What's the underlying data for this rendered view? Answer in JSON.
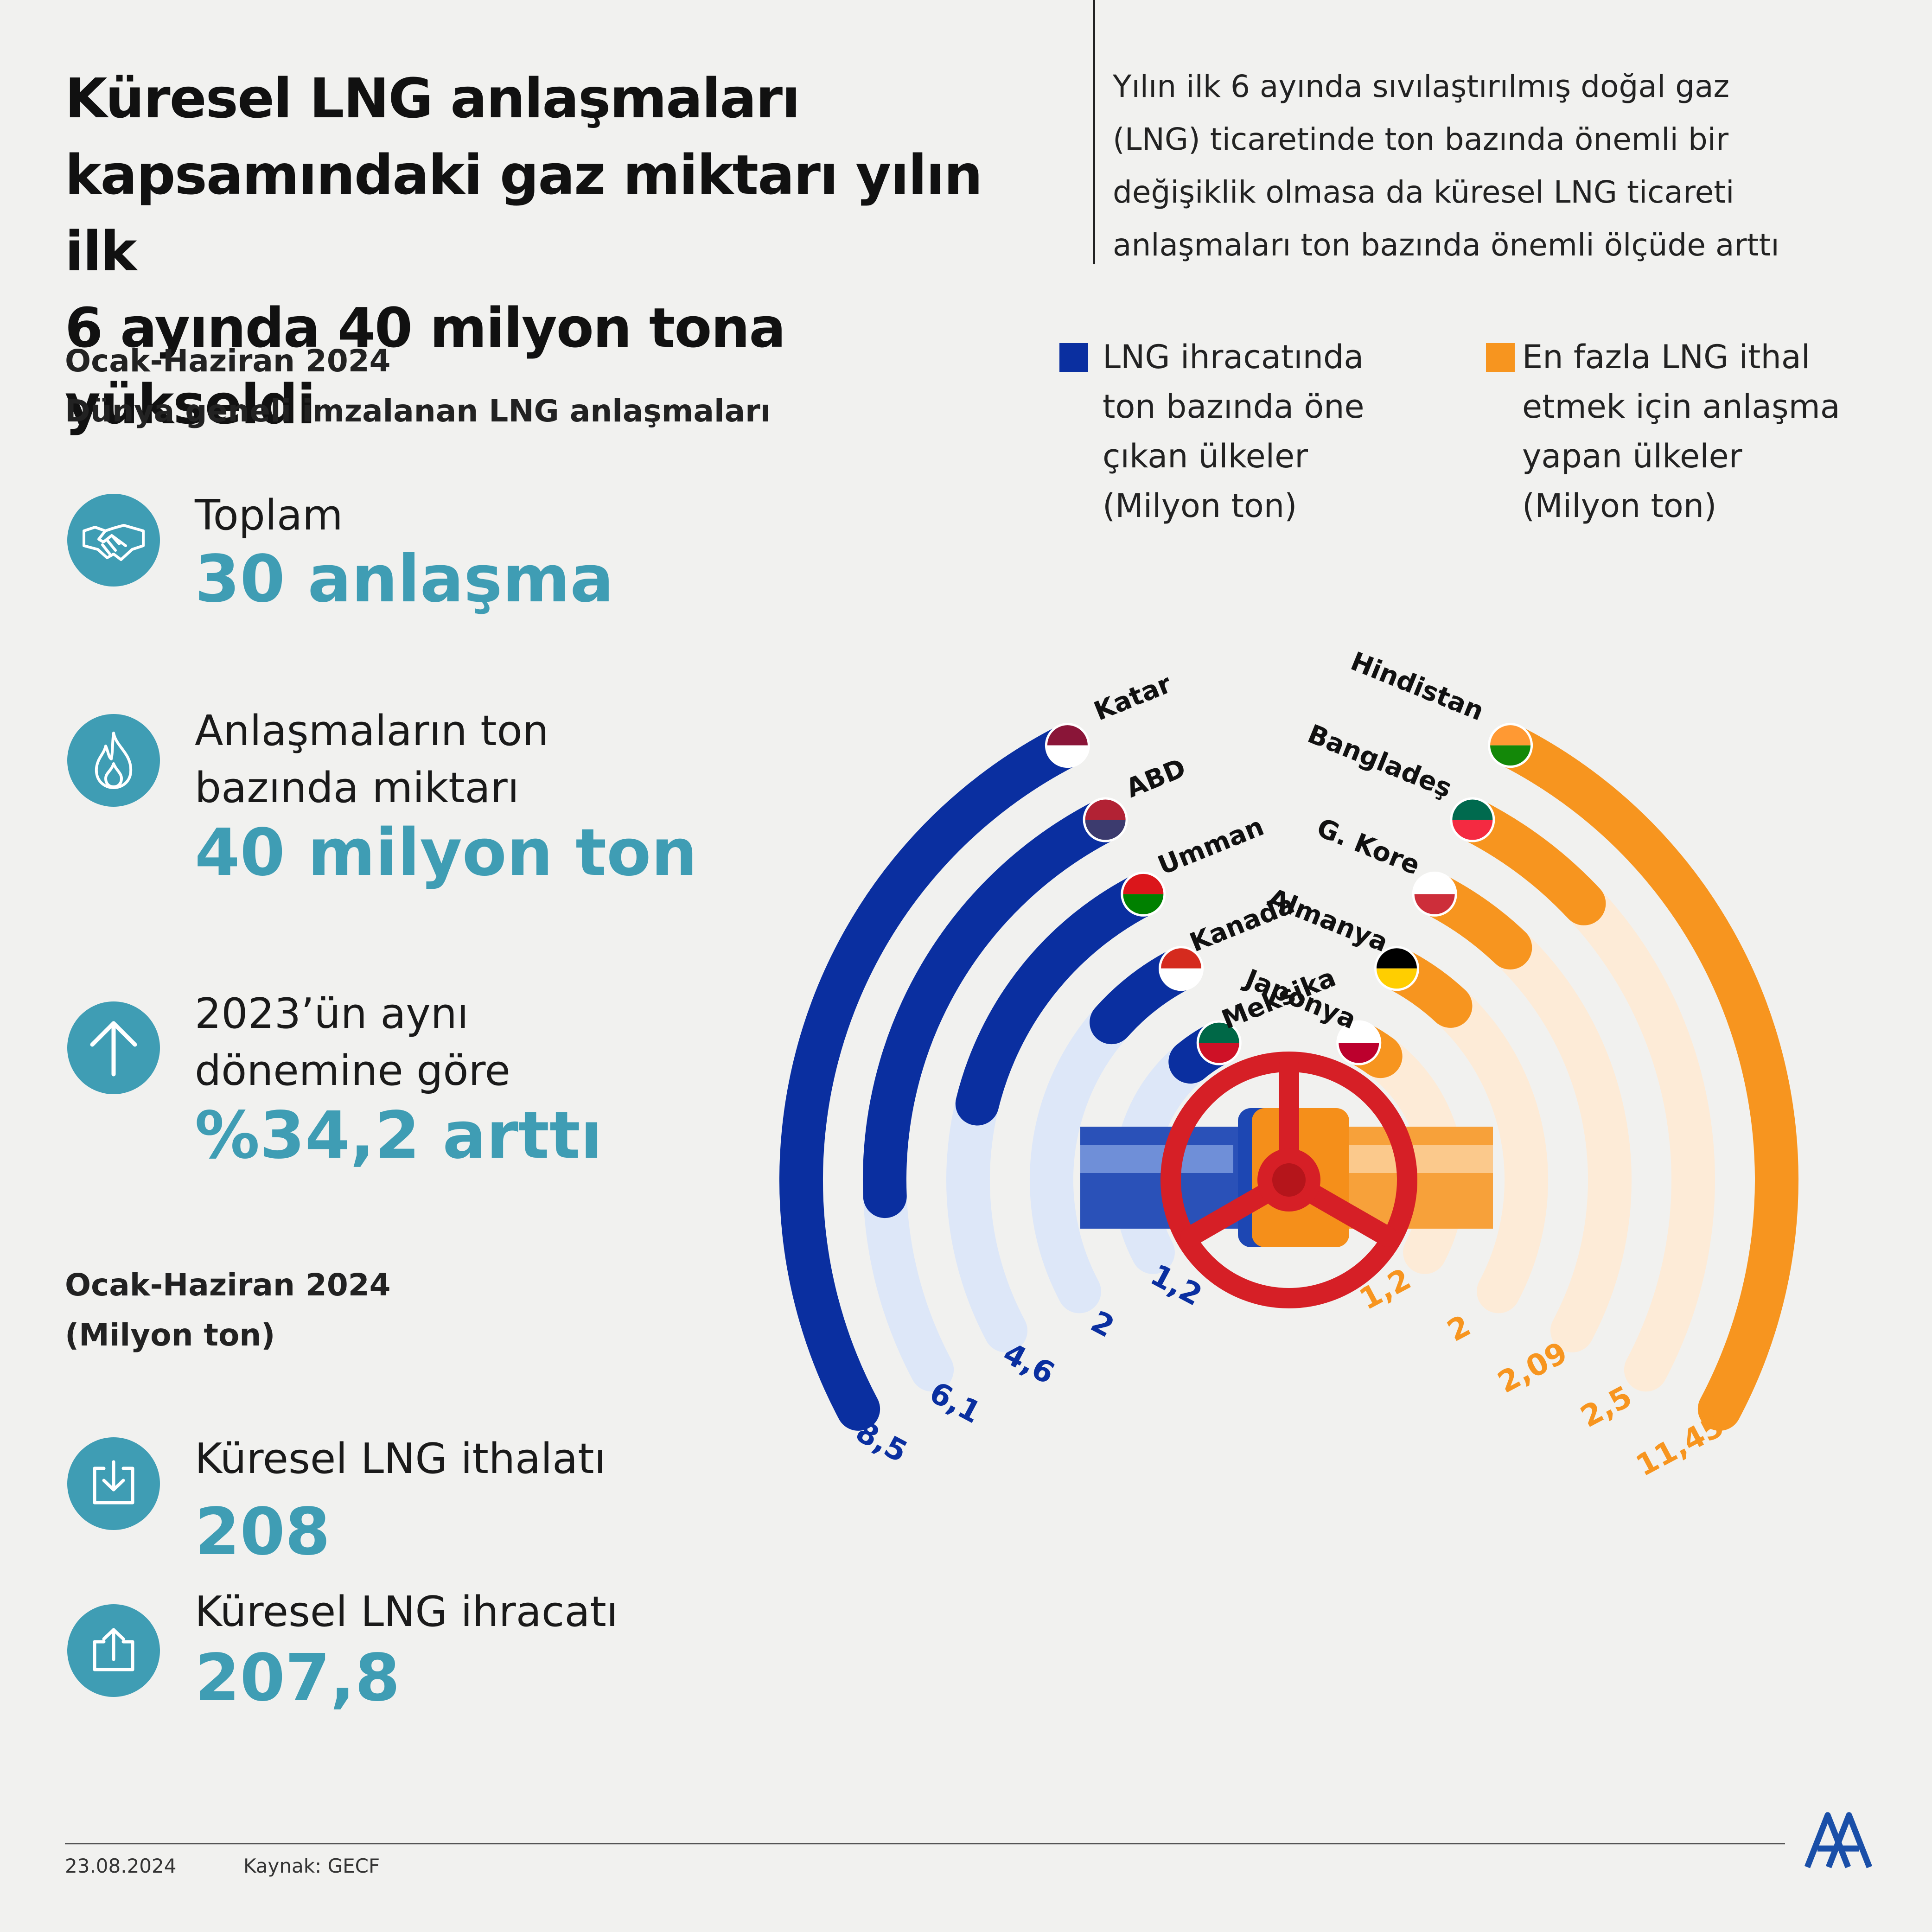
{
  "header": {
    "title_lines": [
      "Küresel LNG anlaşmaları",
      "kapsamındaki gaz miktarı yılın ilk",
      "6 ayında 40 milyon tona yükseldi"
    ],
    "subtitle_lines": [
      "Yılın ilk 6 ayında sıvılaştırılmış doğal gaz",
      "(LNG) ticaretinde ton bazında önemli bir",
      "değişiklik olmasa da küresel LNG ticareti",
      "anlaşmaları ton bazında önemli ölçüde arttı"
    ]
  },
  "section1": {
    "period": "Ocak-Haziran 2024",
    "caption": "Dünya geneli imzalanan LNG anlaşmaları"
  },
  "stats": {
    "total": {
      "label": "Toplam",
      "value": "30 anlaşma",
      "icon": "handshake-icon"
    },
    "volume": {
      "label_line1": "Anlaşmaların ton",
      "label_line2": "bazında miktarı",
      "value": "40 milyon ton",
      "icon": "flame-icon"
    },
    "growth": {
      "label_line1": "2023’ün aynı",
      "label_line2": "dönemine göre",
      "value": "%34,2 arttı",
      "icon": "arrow-up-icon"
    }
  },
  "section2": {
    "period": "Ocak-Haziran 2024",
    "unit": "(Milyon ton)"
  },
  "global": {
    "import": {
      "label": "Küresel LNG ithalatı",
      "value": "208",
      "icon": "download-icon"
    },
    "export": {
      "label": "Küresel LNG ihracatı",
      "value": "207,8",
      "icon": "upload-icon"
    }
  },
  "legend": {
    "exporters": {
      "lines": [
        "LNG ihracatında",
        "ton bazında öne",
        "çıkan ülkeler",
        "(Milyon ton)"
      ],
      "color": "#0a2fa0"
    },
    "importers": {
      "lines": [
        "En fazla LNG ithal",
        "etmek için anlaşma",
        "yapan ülkeler",
        "(Milyon ton)"
      ],
      "color": "#f7951f"
    }
  },
  "chart_data": {
    "type": "radial-bar",
    "unit": "Milyon ton",
    "series": [
      {
        "name": "LNG ihracatında ton bazında öne çıkan ülkeler",
        "color": "#0a2fa0",
        "track_color": "#dde7f8",
        "categories": [
          "Katar",
          "ABD",
          "Umman",
          "Kanada",
          "Meksika"
        ],
        "values": [
          8.5,
          6.1,
          4.6,
          2,
          1.2
        ],
        "value_labels": [
          "8,5",
          "6,1",
          "4,6",
          "2",
          "1,2"
        ]
      },
      {
        "name": "En fazla LNG ithal etmek için anlaşma yapan ülkeler",
        "color": "#f7951f",
        "track_color": "#fdebd7",
        "categories": [
          "Hindistan",
          "Bangladeş",
          "G. Kore",
          "Almanya",
          "Japonya"
        ],
        "values": [
          11.45,
          2.5,
          2.09,
          2,
          1.2
        ],
        "value_labels": [
          "11,45",
          "2,5",
          "2,09",
          "2",
          "1,2"
        ]
      }
    ]
  },
  "footer": {
    "date": "23.08.2024",
    "source": "Kaynak: GECF",
    "logo_text": "AA"
  }
}
